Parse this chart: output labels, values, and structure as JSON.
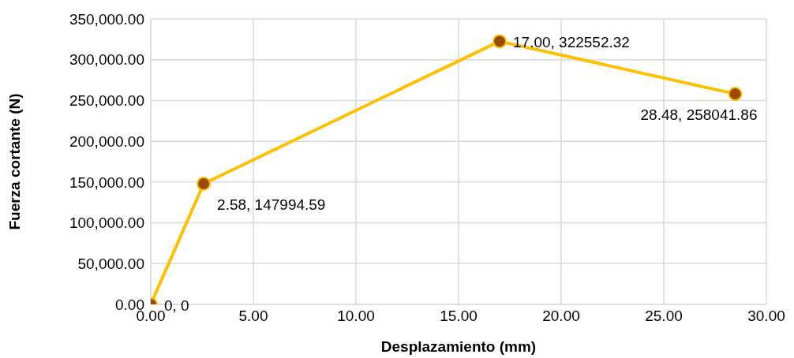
{
  "chart_data": {
    "type": "line",
    "xlabel": "Desplazamiento (mm)",
    "ylabel": "Fuerza cortante (N)",
    "x": [
      0,
      2.58,
      17,
      28.48
    ],
    "series": [
      {
        "color": "#ffc000",
        "values": [
          0,
          147994.59,
          322552.32,
          258041.86
        ],
        "value_labels": [
          "0, 0",
          "2.58, 147994.59",
          "17.00, 322552.32",
          "28.48, 258041.86"
        ]
      }
    ],
    "xlim": [
      0,
      30
    ],
    "xticks": [
      {
        "value": 0,
        "label": "0.00"
      },
      {
        "value": 5,
        "label": "5.00"
      },
      {
        "value": 10,
        "label": "10.00"
      },
      {
        "value": 15,
        "label": "15.00"
      },
      {
        "value": 20,
        "label": "20.00"
      },
      {
        "value": 25,
        "label": "25.00"
      },
      {
        "value": 30,
        "label": "30.00"
      }
    ],
    "ylim": [
      0,
      350000
    ],
    "yticks": [
      {
        "value": 0,
        "label": "0.00"
      },
      {
        "value": 50000,
        "label": "50,000.00"
      },
      {
        "value": 100000,
        "label": "100,000.00"
      },
      {
        "value": 150000,
        "label": "150,000.00"
      },
      {
        "value": 200000,
        "label": "200,000.00"
      },
      {
        "value": 250000,
        "label": "250,000.00"
      },
      {
        "value": 300000,
        "label": "300,000.00"
      },
      {
        "value": 350000,
        "label": "350,000.00"
      }
    ],
    "grid": true,
    "marker": "circle",
    "line_style": "solid"
  }
}
